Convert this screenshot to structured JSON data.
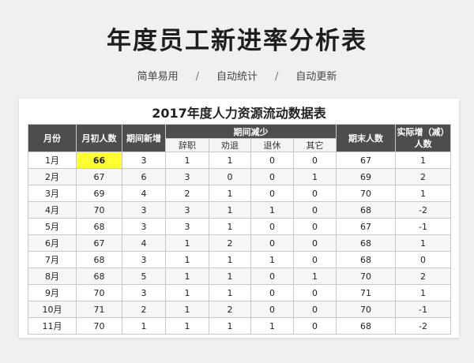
{
  "header": {
    "title": "年度员工新进率分析表",
    "features": [
      "简单易用",
      "自动统计",
      "自动更新"
    ],
    "separator": "/"
  },
  "sheet": {
    "title": "2017年度人力资源流动数据表",
    "columns": {
      "month": "月份",
      "start_count": "月初人数",
      "new_hires": "期间新增",
      "decrease_group": "期间减少",
      "resign": "辞职",
      "persuade": "劝退",
      "retire": "退休",
      "other": "其它",
      "end_count": "期末人数",
      "net_change": "实际增（减）人数"
    },
    "highlight_color": "#ffff33",
    "rows": [
      {
        "month": "1月",
        "start": "66",
        "new": "3",
        "resign": "1",
        "persuade": "1",
        "retire": "0",
        "other": "0",
        "end": "67",
        "net": "1"
      },
      {
        "month": "2月",
        "start": "67",
        "new": "6",
        "resign": "3",
        "persuade": "0",
        "retire": "0",
        "other": "1",
        "end": "69",
        "net": "2"
      },
      {
        "month": "3月",
        "start": "69",
        "new": "4",
        "resign": "2",
        "persuade": "1",
        "retire": "0",
        "other": "0",
        "end": "70",
        "net": "1"
      },
      {
        "month": "4月",
        "start": "70",
        "new": "3",
        "resign": "3",
        "persuade": "1",
        "retire": "1",
        "other": "0",
        "end": "68",
        "net": "-2"
      },
      {
        "month": "5月",
        "start": "68",
        "new": "3",
        "resign": "3",
        "persuade": "1",
        "retire": "0",
        "other": "0",
        "end": "67",
        "net": "-1"
      },
      {
        "month": "6月",
        "start": "67",
        "new": "4",
        "resign": "1",
        "persuade": "2",
        "retire": "0",
        "other": "0",
        "end": "68",
        "net": "1"
      },
      {
        "month": "7月",
        "start": "68",
        "new": "3",
        "resign": "1",
        "persuade": "1",
        "retire": "1",
        "other": "0",
        "end": "68",
        "net": "0"
      },
      {
        "month": "8月",
        "start": "68",
        "new": "5",
        "resign": "1",
        "persuade": "1",
        "retire": "0",
        "other": "1",
        "end": "70",
        "net": "2"
      },
      {
        "month": "9月",
        "start": "70",
        "new": "3",
        "resign": "1",
        "persuade": "1",
        "retire": "0",
        "other": "0",
        "end": "71",
        "net": "1"
      },
      {
        "month": "10月",
        "start": "71",
        "new": "2",
        "resign": "1",
        "persuade": "2",
        "retire": "0",
        "other": "0",
        "end": "70",
        "net": "-1"
      },
      {
        "month": "11月",
        "start": "70",
        "new": "1",
        "resign": "1",
        "persuade": "1",
        "retire": "1",
        "other": "0",
        "end": "68",
        "net": "-2"
      }
    ]
  }
}
